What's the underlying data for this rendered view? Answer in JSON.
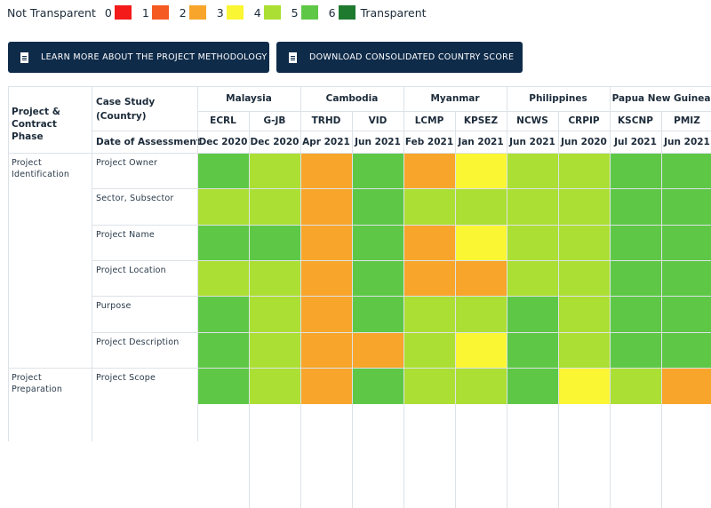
{
  "legend": {
    "left_label": "Not Transparent",
    "right_label": "Transparent",
    "levels": [
      {
        "value": "0",
        "color": "#f41a1a"
      },
      {
        "value": "1",
        "color": "#f55a22"
      },
      {
        "value": "2",
        "color": "#f8a52b"
      },
      {
        "value": "3",
        "color": "#fbf633"
      },
      {
        "value": "4",
        "color": "#acdf33"
      },
      {
        "value": "5",
        "color": "#5ec846"
      },
      {
        "value": "6",
        "color": "#1e7a2f"
      }
    ]
  },
  "buttons": {
    "methodology": "LEARN MORE ABOUT THE PROJECT METHODOLOGY",
    "download": "DOWNLOAD CONSOLIDATED COUNTRY SCORE"
  },
  "table": {
    "phase_header": "Project & Contract Phase",
    "case_study_header": "Case Study (Country)",
    "date_header": "Date of Assessment",
    "countries": [
      {
        "name": "Malaysia",
        "span": 2
      },
      {
        "name": "Cambodia",
        "span": 2
      },
      {
        "name": "Myanmar",
        "span": 2
      },
      {
        "name": "Philippines",
        "span": 2
      },
      {
        "name": "Papua New Guinea",
        "span": 2
      }
    ],
    "projects": [
      "ECRL",
      "G-JB",
      "TRHD",
      "VID",
      "LCMP",
      "KPSEZ",
      "NCWS",
      "CRPIP",
      "KSCNP",
      "PMIZ"
    ],
    "dates": [
      "Dec 2020",
      "Dec 2020",
      "Apr 2021",
      "Jun 2021",
      "Feb 2021",
      "Jan 2021",
      "Jun 2021",
      "Jun 2020",
      "Jul 2021",
      "Jun 2021"
    ],
    "phases": [
      {
        "name": "Project Identification",
        "start_row": 0,
        "rows": 6
      },
      {
        "name": "Project Preparation",
        "start_row": 6,
        "rows": 1
      }
    ],
    "rows": [
      {
        "label": "Project Owner",
        "scores": [
          5,
          4,
          2,
          5,
          2,
          3,
          4,
          4,
          5,
          5
        ]
      },
      {
        "label": "Sector, Subsector",
        "scores": [
          4,
          4,
          2,
          5,
          4,
          4,
          4,
          4,
          5,
          5
        ]
      },
      {
        "label": "Project Name",
        "scores": [
          5,
          5,
          2,
          5,
          2,
          3,
          4,
          4,
          5,
          5
        ]
      },
      {
        "label": "Project Location",
        "scores": [
          4,
          4,
          2,
          5,
          2,
          2,
          4,
          4,
          5,
          5
        ]
      },
      {
        "label": "Purpose",
        "scores": [
          5,
          4,
          2,
          5,
          4,
          4,
          5,
          4,
          5,
          5
        ]
      },
      {
        "label": "Project Description",
        "scores": [
          5,
          4,
          2,
          2,
          4,
          3,
          5,
          4,
          5,
          5
        ]
      },
      {
        "label": "Project Scope",
        "scores": [
          5,
          4,
          2,
          5,
          4,
          4,
          5,
          3,
          4,
          2
        ]
      }
    ]
  }
}
